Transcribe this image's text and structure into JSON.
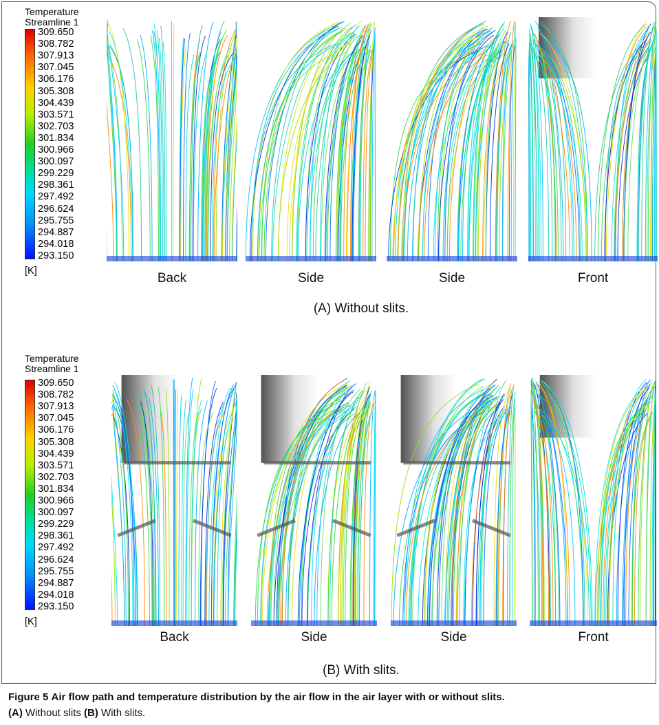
{
  "panels": [
    {
      "legend": {
        "title": "Temperature",
        "subtitle": "Streamline 1",
        "values": [
          "309.650",
          "308.782",
          "307.913",
          "307.045",
          "306.176",
          "305.308",
          "304.439",
          "303.571",
          "302.703",
          "301.834",
          "300.966",
          "300.097",
          "299.229",
          "298.361",
          "297.492",
          "296.624",
          "295.755",
          "294.887",
          "294.018",
          "293.150"
        ],
        "unit": "[K]"
      },
      "views": [
        "Back",
        "Side",
        "Side",
        "Front"
      ],
      "caption": "(A) Without slits."
    },
    {
      "legend": {
        "title": "Temperature",
        "subtitle": "Streamline 1",
        "values": [
          "309.650",
          "308.782",
          "307.913",
          "307.045",
          "306.176",
          "305.308",
          "304.439",
          "303.571",
          "302.703",
          "301.834",
          "300.966",
          "300.097",
          "299.229",
          "298.361",
          "297.492",
          "296.624",
          "295.755",
          "294.887",
          "294.018",
          "293.150"
        ],
        "unit": "[K]"
      },
      "views": [
        "Back",
        "Side",
        "Side",
        "Front"
      ],
      "caption": "(B) With slits."
    }
  ],
  "figure_caption": {
    "label": "Figure 5",
    "text": "Air flow path and temperature distribution by the air flow in the air layer with or without slits.",
    "details": [
      {
        "tag": "(A)",
        "text": "Without slits"
      },
      {
        "tag": "(B)",
        "text": "With slits."
      }
    ]
  }
}
